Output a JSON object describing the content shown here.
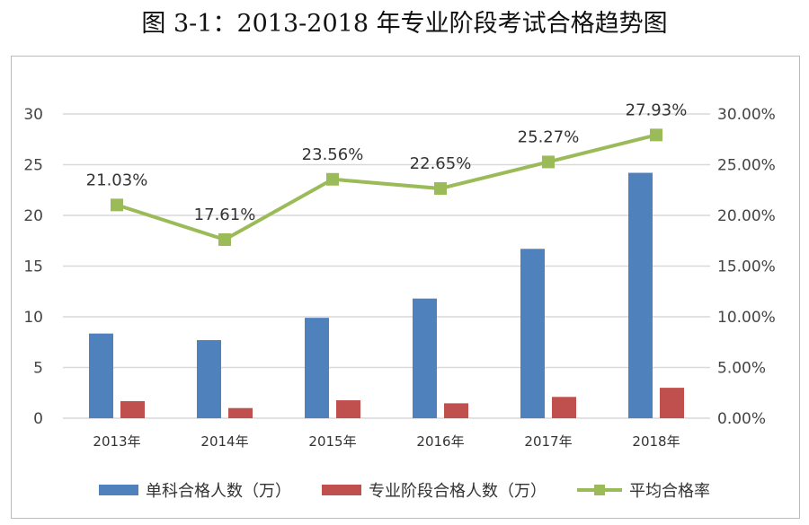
{
  "chart_data": {
    "type": "bar",
    "title": "图 3-1：2013-2018 年专业阶段考试合格趋势图",
    "categories": [
      "2013年",
      "2014年",
      "2015年",
      "2016年",
      "2017年",
      "2018年"
    ],
    "series": [
      {
        "name": "单科合格人数（万）",
        "type": "bar",
        "axis": "left",
        "color": "#4f81bd",
        "values": [
          8.35,
          7.7,
          9.9,
          11.8,
          16.7,
          24.2
        ]
      },
      {
        "name": "专业阶段合格人数（万）",
        "type": "bar",
        "axis": "left",
        "color": "#c0504d",
        "values": [
          1.68,
          1.0,
          1.77,
          1.47,
          2.1,
          3.0
        ]
      },
      {
        "name": "平均合格率",
        "type": "line",
        "axis": "right",
        "color": "#9bbb59",
        "values": [
          21.03,
          17.61,
          23.56,
          22.65,
          25.27,
          27.93
        ],
        "labels": [
          "21.03%",
          "17.61%",
          "23.56%",
          "22.65%",
          "25.27%",
          "27.93%"
        ]
      }
    ],
    "left_axis": {
      "range": [
        0,
        30
      ],
      "ticks": [
        "0",
        "5",
        "10",
        "15",
        "20",
        "25",
        "30"
      ]
    },
    "right_axis": {
      "range": [
        0,
        30
      ],
      "ticks": [
        "0.00%",
        "5.00%",
        "10.00%",
        "15.00%",
        "20.00%",
        "25.00%",
        "30.00%"
      ]
    },
    "grid": true,
    "legend": "bottom"
  }
}
